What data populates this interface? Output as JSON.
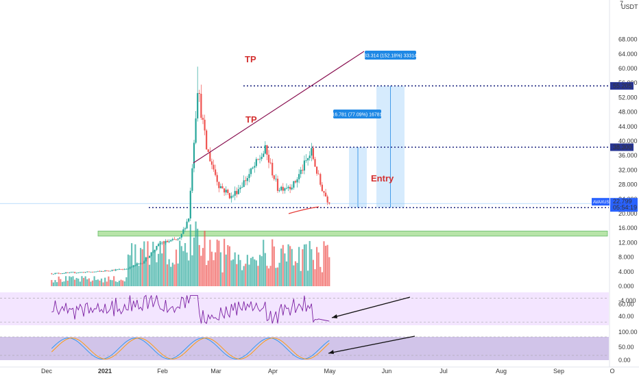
{
  "chart_data": {
    "type": "candlestick",
    "symbol": "AVAXUSDT",
    "currency": "USDT",
    "price_axis": {
      "ticks": [
        "68.000",
        "64.000",
        "60.000",
        "56.000",
        "52.000",
        "48.000",
        "44.000",
        "40.000",
        "36.000",
        "32.000",
        "28.000",
        "24.000",
        "20.000",
        "16.000",
        "12.000",
        "8.000",
        "4.000",
        "0.000",
        "-4.000"
      ],
      "top_partial": "7",
      "ylim": [
        -6,
        74
      ]
    },
    "time_axis": [
      "Dec",
      "2021",
      "Feb",
      "Mar",
      "Apr",
      "May",
      "Jun",
      "Jul",
      "Aug",
      "Sep",
      "O"
    ],
    "price_series_approx": [
      {
        "date": "2020-11-20",
        "close": 3.5
      },
      {
        "date": "2020-12-15",
        "close": 4.0
      },
      {
        "date": "2021-01-01",
        "close": 4.8
      },
      {
        "date": "2021-01-10",
        "close": 6.5
      },
      {
        "date": "2021-01-20",
        "close": 11.8
      },
      {
        "date": "2021-01-31",
        "close": 13.0
      },
      {
        "date": "2021-02-05",
        "close": 19.0
      },
      {
        "date": "2021-02-10",
        "close": 55.0
      },
      {
        "date": "2021-02-15",
        "close": 38.0
      },
      {
        "date": "2021-02-22",
        "close": 28.0
      },
      {
        "date": "2021-03-01",
        "close": 24.5
      },
      {
        "date": "2021-03-10",
        "close": 30.0
      },
      {
        "date": "2021-03-20",
        "close": 37.5
      },
      {
        "date": "2021-03-27",
        "close": 27.0
      },
      {
        "date": "2021-04-05",
        "close": 28.0
      },
      {
        "date": "2021-04-15",
        "close": 37.0
      },
      {
        "date": "2021-04-20",
        "close": 28.0
      },
      {
        "date": "2021-04-25",
        "close": 22.8
      }
    ],
    "price_labels": {
      "last_symbol": "AVAXUSDT",
      "last_price": "22.799",
      "countdown": "05:54:19",
      "tp1": "55.205",
      "tp2": "38.300",
      "entry": "21.650"
    },
    "annotations": {
      "tp_label": "TP",
      "entry_label": "Entry",
      "measure_small": "16.781 (77.09%) 16781",
      "measure_large": "33.314 (152.18%) 33314"
    },
    "levels": {
      "tp1": 55.205,
      "tp2": 38.3,
      "entry": 21.65,
      "support_zone": [
        13.8,
        15.2
      ]
    },
    "rsi": {
      "ticks": [
        "60.00",
        "40.00"
      ],
      "band": [
        30,
        70
      ],
      "last": 32
    },
    "stoch_rsi": {
      "ticks": [
        "100.00",
        "50.00",
        "0.00"
      ],
      "band": [
        20,
        80
      ],
      "last": 5
    },
    "colors": {
      "up": "#26a69a",
      "down": "#ef5350",
      "level_line": "#1a237e",
      "trend_line": "#880e4f",
      "label_blue": "#2962ff",
      "tp_text": "#d32f2f",
      "zone": "#b7e4a8",
      "measure": "#bbdefb",
      "rsi_bg": "#f3e5ff",
      "rsi_line": "#7b1fa2",
      "stoch_bg": "#d1c4e9",
      "k_line": "#2196f3",
      "d_line": "#ff9800"
    }
  }
}
